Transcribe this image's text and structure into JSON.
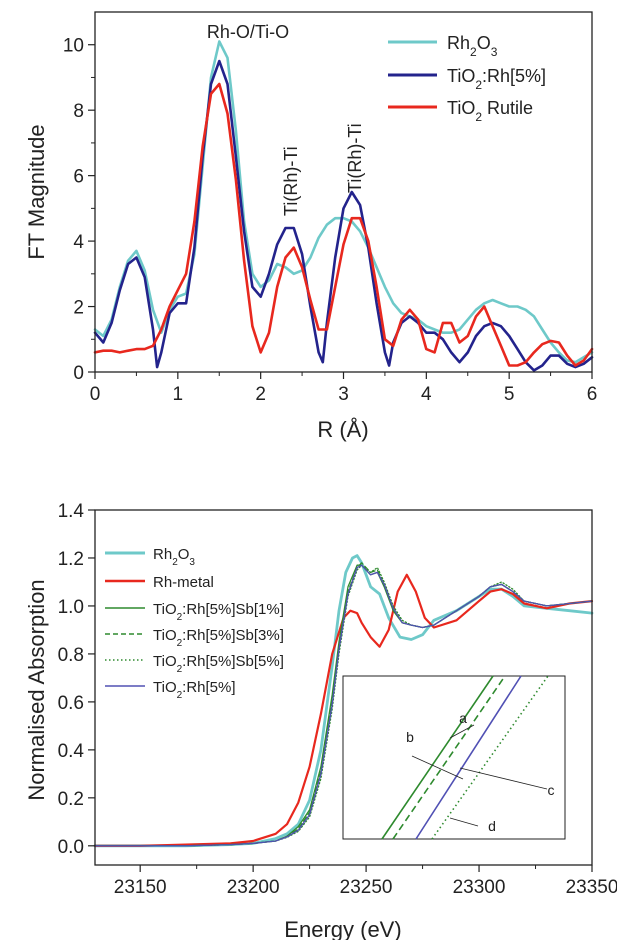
{
  "chart_data": [
    {
      "type": "line",
      "xlabel": "R (Å)",
      "ylabel": "FT Magnitude",
      "xlim": [
        0,
        6
      ],
      "ylim": [
        0,
        11
      ],
      "x_ticks": [
        0,
        1,
        2,
        3,
        4,
        5,
        6
      ],
      "y_ticks": [
        0,
        2,
        4,
        6,
        8,
        10
      ],
      "legend_position": "top-right",
      "annotations": [
        {
          "text": "Rh-O/Ti-O",
          "x": 1.52,
          "y": 10.45
        },
        {
          "text": "Ti(Rh)-Ti",
          "x": 2.38,
          "y": 4.7,
          "rotated": true
        },
        {
          "text": "Ti(Rh)-Ti",
          "x": 3.08,
          "y": 5.6,
          "rotated": true
        }
      ],
      "series": [
        {
          "name": "Rh2O3",
          "label_main": "Rh",
          "label_sub1": "2",
          "label_mid": "O",
          "label_sub2": "3",
          "label_tail": "",
          "color": "#6ec9c9",
          "x": [
            0,
            0.1,
            0.2,
            0.3,
            0.4,
            0.5,
            0.6,
            0.7,
            0.8,
            0.9,
            1.0,
            1.1,
            1.2,
            1.3,
            1.4,
            1.5,
            1.6,
            1.7,
            1.8,
            1.9,
            2.0,
            2.1,
            2.2,
            2.3,
            2.4,
            2.5,
            2.6,
            2.7,
            2.8,
            2.9,
            3.0,
            3.1,
            3.2,
            3.3,
            3.4,
            3.5,
            3.6,
            3.7,
            3.8,
            3.9,
            4.0,
            4.1,
            4.2,
            4.3,
            4.4,
            4.5,
            4.6,
            4.7,
            4.8,
            4.9,
            5.0,
            5.1,
            5.2,
            5.3,
            5.4,
            5.5,
            5.6,
            5.7,
            5.8,
            5.9,
            6.0
          ],
          "y": [
            1.3,
            1.1,
            1.6,
            2.6,
            3.4,
            3.7,
            3.1,
            1.9,
            1.2,
            1.9,
            2.3,
            2.4,
            3.6,
            6.3,
            9.0,
            10.1,
            9.6,
            7.4,
            4.6,
            3.0,
            2.6,
            2.8,
            3.3,
            3.2,
            3.0,
            3.1,
            3.5,
            4.1,
            4.5,
            4.7,
            4.7,
            4.6,
            4.3,
            3.8,
            3.2,
            2.6,
            2.1,
            1.8,
            1.7,
            1.6,
            1.4,
            1.3,
            1.2,
            1.2,
            1.3,
            1.6,
            1.9,
            2.1,
            2.2,
            2.1,
            2.0,
            2.0,
            1.9,
            1.7,
            1.3,
            0.9,
            0.6,
            0.35,
            0.3,
            0.45,
            0.6
          ]
        },
        {
          "name": "TiO2:Rh[5%]",
          "label_main": "TiO",
          "label_sub1": "2",
          "label_mid": ":Rh[5%]",
          "label_sub2": "",
          "label_tail": "",
          "color": "#23238c",
          "x": [
            0,
            0.1,
            0.2,
            0.3,
            0.4,
            0.5,
            0.6,
            0.7,
            0.75,
            0.8,
            0.9,
            1.0,
            1.1,
            1.2,
            1.3,
            1.4,
            1.5,
            1.6,
            1.7,
            1.8,
            1.9,
            2.0,
            2.1,
            2.2,
            2.3,
            2.4,
            2.5,
            2.6,
            2.7,
            2.75,
            2.8,
            2.9,
            3.0,
            3.1,
            3.2,
            3.3,
            3.4,
            3.5,
            3.55,
            3.6,
            3.7,
            3.8,
            3.9,
            4.0,
            4.1,
            4.2,
            4.3,
            4.4,
            4.5,
            4.6,
            4.7,
            4.8,
            4.9,
            5.0,
            5.1,
            5.2,
            5.3,
            5.4,
            5.5,
            5.6,
            5.7,
            5.8,
            5.9,
            6.0
          ],
          "y": [
            1.2,
            0.9,
            1.5,
            2.5,
            3.3,
            3.5,
            2.9,
            1.3,
            0.15,
            0.6,
            1.8,
            2.1,
            2.1,
            3.8,
            6.6,
            8.8,
            9.5,
            8.8,
            6.6,
            4.3,
            2.6,
            2.3,
            3.0,
            3.9,
            4.4,
            4.4,
            3.6,
            2.0,
            0.6,
            0.3,
            1.5,
            3.5,
            5.0,
            5.5,
            5.1,
            3.8,
            2.1,
            0.6,
            0.2,
            0.9,
            1.5,
            1.7,
            1.5,
            1.2,
            1.2,
            1.0,
            0.6,
            0.3,
            0.6,
            1.1,
            1.4,
            1.5,
            1.4,
            1.1,
            0.7,
            0.3,
            0.05,
            0.2,
            0.5,
            0.5,
            0.25,
            0.15,
            0.25,
            0.45
          ]
        },
        {
          "name": "TiO2 Rutile",
          "label_main": "TiO",
          "label_sub1": "2",
          "label_mid": " Rutile",
          "label_sub2": "",
          "label_tail": "",
          "color": "#e8281e",
          "x": [
            0,
            0.1,
            0.2,
            0.3,
            0.4,
            0.5,
            0.6,
            0.7,
            0.8,
            0.9,
            1.0,
            1.1,
            1.2,
            1.3,
            1.4,
            1.5,
            1.6,
            1.7,
            1.8,
            1.9,
            2.0,
            2.1,
            2.2,
            2.3,
            2.4,
            2.5,
            2.6,
            2.7,
            2.8,
            2.9,
            3.0,
            3.1,
            3.2,
            3.3,
            3.4,
            3.5,
            3.6,
            3.7,
            3.8,
            3.9,
            4.0,
            4.1,
            4.2,
            4.3,
            4.4,
            4.5,
            4.6,
            4.7,
            4.8,
            4.9,
            5.0,
            5.1,
            5.2,
            5.3,
            5.4,
            5.5,
            5.6,
            5.7,
            5.8,
            5.9,
            6.0
          ],
          "y": [
            0.6,
            0.65,
            0.65,
            0.6,
            0.65,
            0.7,
            0.7,
            0.8,
            1.3,
            2.0,
            2.5,
            3.0,
            4.6,
            6.9,
            8.5,
            8.8,
            7.9,
            5.9,
            3.4,
            1.4,
            0.6,
            1.2,
            2.6,
            3.5,
            3.8,
            3.2,
            2.2,
            1.3,
            1.3,
            2.6,
            3.9,
            4.7,
            4.7,
            4.0,
            2.6,
            1.0,
            0.8,
            1.6,
            1.9,
            1.6,
            0.7,
            0.6,
            1.5,
            1.5,
            0.9,
            1.1,
            1.7,
            2.0,
            1.4,
            0.8,
            0.2,
            0.2,
            0.3,
            0.6,
            0.85,
            0.95,
            0.9,
            0.5,
            0.2,
            0.35,
            0.7
          ]
        }
      ]
    },
    {
      "type": "line",
      "xlabel": "Energy (eV)",
      "ylabel": "Normalised Absorption",
      "xlim": [
        23130,
        23350
      ],
      "ylim": [
        -0.08,
        1.4
      ],
      "x_ticks": [
        23150,
        23200,
        23250,
        23300,
        23350
      ],
      "y_ticks": [
        0.0,
        0.2,
        0.4,
        0.6,
        0.8,
        1.0,
        1.2,
        1.4
      ],
      "legend_position": "top-left",
      "inset_labels": [
        "a",
        "b",
        "c",
        "d"
      ],
      "series": [
        {
          "name": "Rh2O3",
          "label_main": "Rh",
          "label_sub1": "2",
          "label_mid": "O",
          "label_sub2": "3",
          "label_tail": "",
          "color": "#6ec9c9",
          "dash": "solid",
          "x": [
            23130,
            23150,
            23170,
            23190,
            23200,
            23210,
            23215,
            23220,
            23225,
            23230,
            23235,
            23238,
            23241,
            23244,
            23246,
            23248,
            23252,
            23256,
            23260,
            23265,
            23270,
            23275,
            23280,
            23290,
            23300,
            23305,
            23310,
            23315,
            23320,
            23330,
            23340,
            23350
          ],
          "y": [
            0.0,
            0.0,
            0.0,
            0.005,
            0.01,
            0.03,
            0.05,
            0.09,
            0.19,
            0.4,
            0.75,
            0.98,
            1.14,
            1.2,
            1.21,
            1.18,
            1.08,
            1.05,
            0.95,
            0.87,
            0.86,
            0.88,
            0.94,
            0.98,
            1.04,
            1.07,
            1.07,
            1.04,
            1.0,
            0.99,
            0.98,
            0.97
          ]
        },
        {
          "name": "Rh-metal",
          "label_main": "Rh-metal",
          "label_sub1": "",
          "label_mid": "",
          "label_sub2": "",
          "label_tail": "",
          "color": "#e8281e",
          "dash": "solid",
          "x": [
            23130,
            23150,
            23170,
            23190,
            23200,
            23210,
            23215,
            23220,
            23225,
            23230,
            23235,
            23240,
            23243,
            23246,
            23248,
            23252,
            23256,
            23260,
            23264,
            23268,
            23272,
            23276,
            23280,
            23290,
            23300,
            23305,
            23310,
            23315,
            23320,
            23330,
            23340,
            23350
          ],
          "y": [
            0.0,
            0.0,
            0.005,
            0.01,
            0.02,
            0.05,
            0.09,
            0.18,
            0.33,
            0.55,
            0.8,
            0.95,
            0.98,
            0.97,
            0.93,
            0.87,
            0.83,
            0.9,
            1.06,
            1.13,
            1.06,
            0.95,
            0.91,
            0.94,
            1.02,
            1.06,
            1.07,
            1.05,
            1.01,
            0.99,
            1.01,
            1.02
          ]
        },
        {
          "name": "TiO2:Rh[5%]Sb[1%]",
          "label_main": "TiO",
          "label_sub1": "2",
          "label_mid": ":Rh[5%]Sb[1%]",
          "label_sub2": "",
          "label_tail": "",
          "color": "#2e8a2e",
          "dash": "solid",
          "x": [
            23130,
            23150,
            23170,
            23190,
            23200,
            23210,
            23215,
            23220,
            23225,
            23230,
            23235,
            23238,
            23242,
            23246,
            23248,
            23252,
            23255,
            23258,
            23262,
            23266,
            23270,
            23275,
            23280,
            23290,
            23300,
            23305,
            23310,
            23315,
            23320,
            23330,
            23340,
            23350
          ],
          "y": [
            0.0,
            0.0,
            0.0,
            0.005,
            0.01,
            0.02,
            0.04,
            0.08,
            0.15,
            0.33,
            0.63,
            0.85,
            1.08,
            1.17,
            1.17,
            1.13,
            1.14,
            1.08,
            0.98,
            0.93,
            0.92,
            0.91,
            0.92,
            0.98,
            1.04,
            1.08,
            1.09,
            1.06,
            1.02,
            1.0,
            1.01,
            1.02
          ]
        },
        {
          "name": "TiO2:Rh[5%]Sb[3%]",
          "label_main": "TiO",
          "label_sub1": "2",
          "label_mid": ":Rh[5%]Sb[3%]",
          "label_sub2": "",
          "label_tail": "",
          "color": "#2e8a2e",
          "dash": "dashed",
          "x": [
            23130,
            23150,
            23170,
            23190,
            23200,
            23210,
            23215,
            23220,
            23225,
            23230,
            23235,
            23238,
            23242,
            23246,
            23248,
            23252,
            23255,
            23258,
            23262,
            23266,
            23270,
            23275,
            23280,
            23290,
            23300,
            23305,
            23310,
            23315,
            23320,
            23330,
            23340,
            23350
          ],
          "y": [
            0.0,
            0.0,
            0.0,
            0.005,
            0.01,
            0.02,
            0.04,
            0.07,
            0.14,
            0.31,
            0.61,
            0.83,
            1.06,
            1.16,
            1.18,
            1.14,
            1.15,
            1.09,
            0.99,
            0.93,
            0.92,
            0.91,
            0.92,
            0.98,
            1.04,
            1.08,
            1.09,
            1.06,
            1.02,
            1.0,
            1.01,
            1.02
          ]
        },
        {
          "name": "TiO2:Rh[5%]Sb[5%]",
          "label_main": "TiO",
          "label_sub1": "2",
          "label_mid": ":Rh[5%]Sb[5%]",
          "label_sub2": "",
          "label_tail": "",
          "color": "#2e8a2e",
          "dash": "dotted",
          "x": [
            23130,
            23150,
            23170,
            23190,
            23200,
            23210,
            23215,
            23220,
            23225,
            23230,
            23235,
            23238,
            23242,
            23246,
            23248,
            23252,
            23255,
            23258,
            23262,
            23266,
            23270,
            23275,
            23280,
            23290,
            23300,
            23305,
            23310,
            23315,
            23320,
            23330,
            23340,
            23350
          ],
          "y": [
            0.0,
            0.0,
            0.0,
            0.005,
            0.01,
            0.02,
            0.035,
            0.06,
            0.12,
            0.28,
            0.57,
            0.8,
            1.04,
            1.15,
            1.17,
            1.14,
            1.16,
            1.1,
            1.0,
            0.94,
            0.92,
            0.91,
            0.92,
            0.98,
            1.04,
            1.08,
            1.1,
            1.07,
            1.02,
            1.0,
            1.01,
            1.02
          ]
        },
        {
          "name": "TiO2:Rh[5%]",
          "label_main": "TiO",
          "label_sub1": "2",
          "label_mid": ":Rh[5%]",
          "label_sub2": "",
          "label_tail": "",
          "color": "#5050b4",
          "dash": "solid",
          "x": [
            23130,
            23150,
            23170,
            23190,
            23200,
            23210,
            23215,
            23220,
            23225,
            23230,
            23235,
            23238,
            23242,
            23246,
            23248,
            23252,
            23255,
            23258,
            23262,
            23266,
            23270,
            23275,
            23280,
            23290,
            23300,
            23305,
            23310,
            23315,
            23320,
            23330,
            23340,
            23350
          ],
          "y": [
            0.0,
            0.0,
            0.0,
            0.005,
            0.01,
            0.02,
            0.037,
            0.065,
            0.13,
            0.3,
            0.59,
            0.82,
            1.05,
            1.16,
            1.17,
            1.13,
            1.14,
            1.09,
            0.99,
            0.93,
            0.92,
            0.91,
            0.92,
            0.98,
            1.04,
            1.08,
            1.09,
            1.06,
            1.02,
            1.0,
            1.01,
            1.02
          ]
        }
      ]
    }
  ]
}
